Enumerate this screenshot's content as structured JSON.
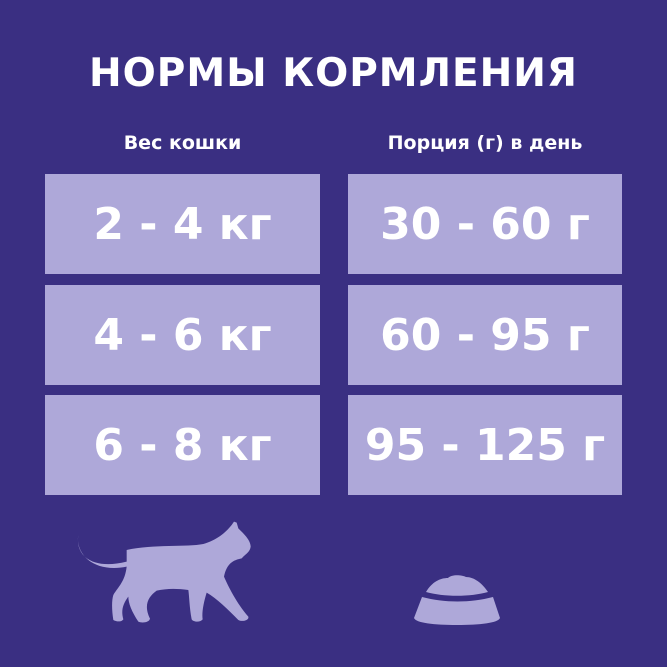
{
  "title": "НОРМЫ КОРМЛЕНИЯ",
  "columns": {
    "weight": "Вес кошки",
    "portion": "Порция (г) в день"
  },
  "rows": [
    {
      "weight": "2 - 4 кг",
      "portion": "30 - 60 г"
    },
    {
      "weight": "4 - 6 кг",
      "portion": "60 - 95 г"
    },
    {
      "weight": "6 - 8 кг",
      "portion": "95 - 125 г"
    }
  ],
  "icons": {
    "left": "cat-icon",
    "right": "food-bowl-icon"
  },
  "colors": {
    "background": "#3a2f82",
    "box": "#aea8d9",
    "text": "#ffffff"
  }
}
